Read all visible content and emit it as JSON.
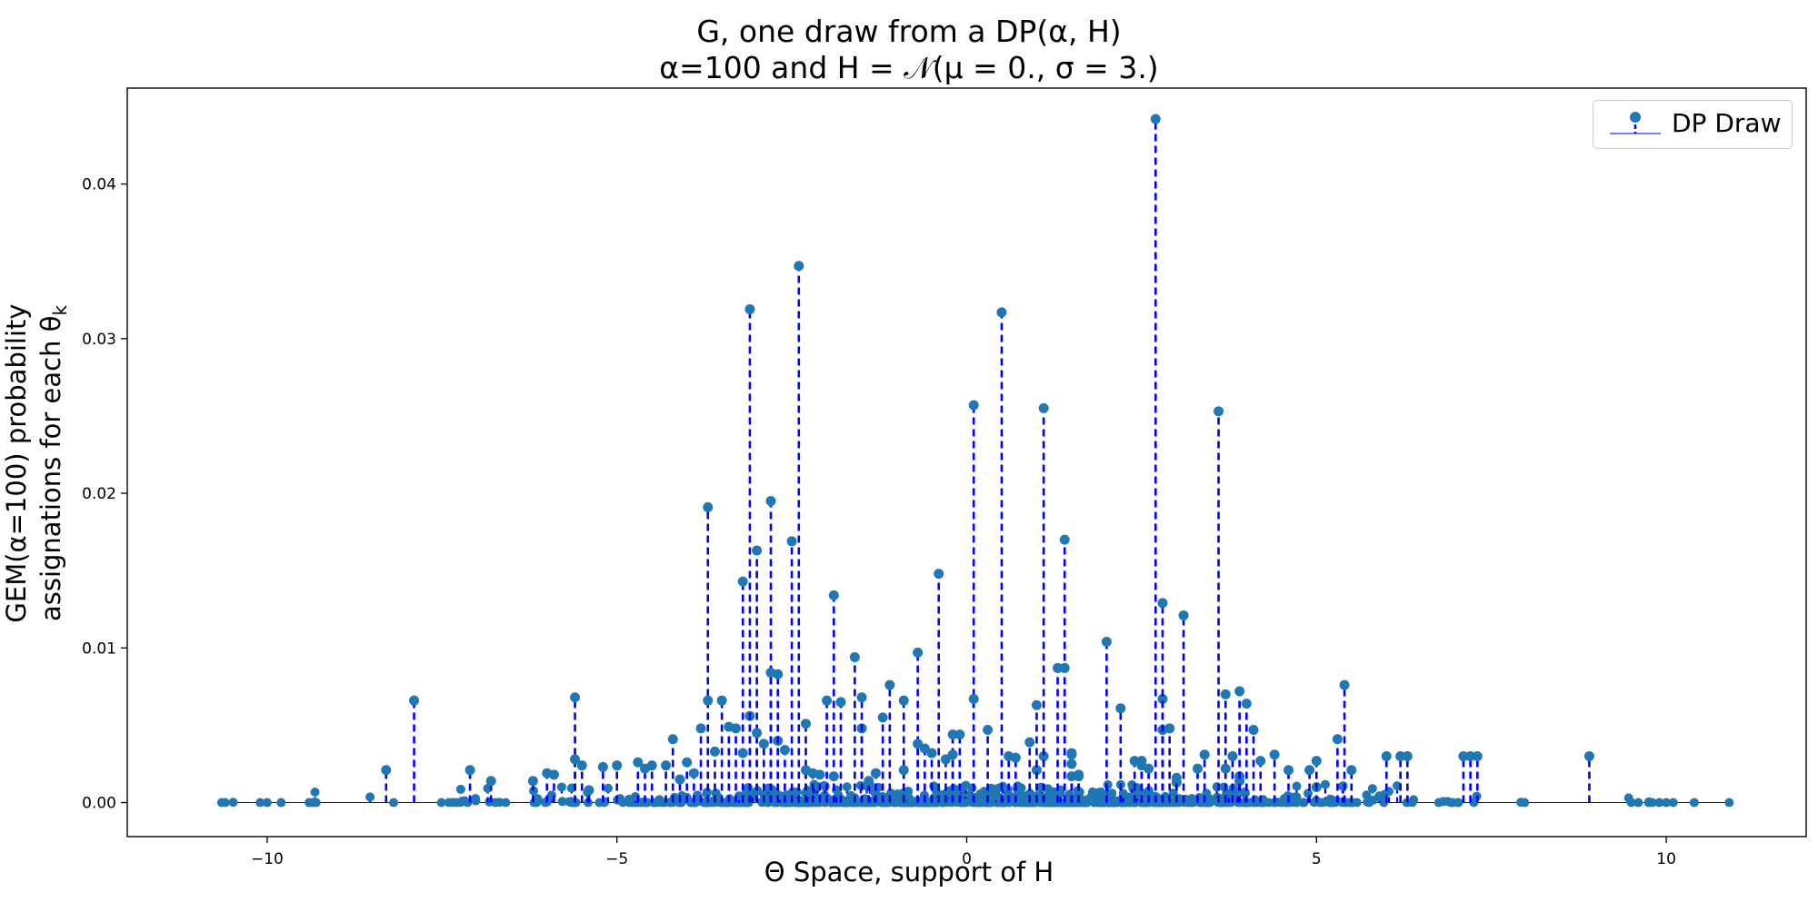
{
  "title": {
    "line1": "G, one draw from a DP(α, H)",
    "line2": "α=100 and H = 𝒩(μ = 0., σ = 3.)"
  },
  "xlabel": "Θ Space, support of H",
  "ylabel": {
    "line1": "GEM(α=100) probability",
    "line2": "assignations for each θ",
    "subscript": "k"
  },
  "legend": {
    "label": "DP Draw",
    "placement": "upper right"
  },
  "colors": {
    "stem": "#0000ff",
    "marker": "#1f77b4",
    "baseline": "#0000ff"
  },
  "chart_data": {
    "type": "stem",
    "title": "G, one draw from a DP(α, H) / α=100 and H = 𝒩(μ = 0., σ = 3.)",
    "xlabel": "Θ Space, support of H",
    "ylabel": "GEM(α=100) probability assignations for each θk",
    "xlim": [
      -12,
      12
    ],
    "ylim": [
      -0.0022,
      0.0462
    ],
    "xticks": [
      -10,
      -5,
      0,
      5,
      10
    ],
    "xtick_labels": [
      "−10",
      "−5",
      "0",
      "5",
      "10"
    ],
    "yticks": [
      0.0,
      0.01,
      0.02,
      0.03,
      0.04
    ],
    "ytick_labels": [
      "0.00",
      "0.01",
      "0.02",
      "0.03",
      "0.04"
    ],
    "grid": false,
    "legend_placement": "upper right",
    "series": [
      {
        "name": "DP Draw",
        "x": [
          -8.3,
          -7.9,
          -7.1,
          -6.8,
          -6.2,
          -6.0,
          -5.9,
          -5.6,
          -5.6,
          -5.5,
          -5.4,
          -5.2,
          -5.0,
          -4.7,
          -4.6,
          -4.5,
          -4.3,
          -4.2,
          -4.1,
          -4.0,
          -3.9,
          -3.8,
          -3.7,
          -3.7,
          -3.6,
          -3.5,
          -3.4,
          -3.3,
          -3.2,
          -3.2,
          -3.1,
          -3.1,
          -3.0,
          -3.0,
          -2.9,
          -2.8,
          -2.8,
          -2.7,
          -2.7,
          -2.6,
          -2.5,
          -2.4,
          -2.3,
          -2.3,
          -2.2,
          -2.1,
          -2.0,
          -1.9,
          -1.9,
          -1.8,
          -1.6,
          -1.5,
          -1.5,
          -1.4,
          -1.3,
          -1.2,
          -1.1,
          -0.9,
          -0.9,
          -0.7,
          -0.7,
          -0.6,
          -0.5,
          -0.4,
          -0.3,
          -0.2,
          -0.2,
          -0.1,
          0.1,
          0.1,
          0.3,
          0.5,
          0.6,
          0.7,
          0.9,
          1.0,
          1.0,
          1.1,
          1.1,
          1.3,
          1.4,
          1.4,
          1.5,
          1.5,
          1.5,
          1.5,
          1.6,
          1.6,
          2.0,
          2.2,
          2.4,
          2.5,
          2.5,
          2.6,
          2.7,
          2.8,
          2.8,
          2.8,
          2.9,
          3.0,
          3.0,
          3.1,
          3.3,
          3.4,
          3.6,
          3.7,
          3.7,
          3.8,
          3.9,
          3.9,
          3.9,
          4.0,
          4.1,
          4.2,
          4.4,
          4.6,
          4.9,
          5.0,
          5.0,
          5.3,
          5.4,
          5.5,
          5.9,
          6.0,
          6.2,
          6.3,
          7.1,
          7.2,
          7.3,
          8.9
        ],
        "y": [
          0.0021,
          0.0066,
          0.0021,
          0.0014,
          0.0014,
          0.0019,
          0.0018,
          0.0068,
          0.0028,
          0.0024,
          0.0008,
          0.0023,
          0.0024,
          0.0026,
          0.0022,
          0.0024,
          0.0024,
          0.0041,
          0.0015,
          0.0026,
          0.0019,
          0.0048,
          0.0191,
          0.0066,
          0.0033,
          0.0066,
          0.0049,
          0.0048,
          0.0143,
          0.0032,
          0.0056,
          0.0319,
          0.0163,
          0.0045,
          0.0038,
          0.0195,
          0.0084,
          0.004,
          0.0083,
          0.0034,
          0.0169,
          0.0347,
          0.0051,
          0.0021,
          0.0019,
          0.0018,
          0.0066,
          0.0134,
          0.0017,
          0.0065,
          0.0094,
          0.0048,
          0.0068,
          0.0014,
          0.0019,
          0.0055,
          0.0076,
          0.0066,
          0.0021,
          0.0097,
          0.0038,
          0.0035,
          0.0032,
          0.0148,
          0.0028,
          0.0044,
          0.0031,
          0.0044,
          0.0257,
          0.0067,
          0.0047,
          0.0317,
          0.003,
          0.0029,
          0.0039,
          0.0021,
          0.0063,
          0.003,
          0.0255,
          0.0087,
          0.017,
          0.0087,
          0.0031,
          0.0032,
          0.0025,
          0.0017,
          0.0018,
          0.0017,
          0.0104,
          0.0061,
          0.0027,
          0.0027,
          0.0024,
          0.0022,
          0.0442,
          0.0047,
          0.0067,
          0.0129,
          0.0048,
          0.0013,
          0.0016,
          0.0121,
          0.0022,
          0.0031,
          0.0253,
          0.007,
          0.0022,
          0.003,
          0.0014,
          0.0017,
          0.0072,
          0.0064,
          0.0047,
          0.0027,
          0.0031,
          0.0021,
          0.0021,
          0.001,
          0.0027,
          0.0041,
          0.0076,
          0.0021,
          0.0004,
          0.003,
          0.003,
          0.003,
          0.003,
          0.003,
          0.003,
          0.003
        ]
      }
    ]
  }
}
